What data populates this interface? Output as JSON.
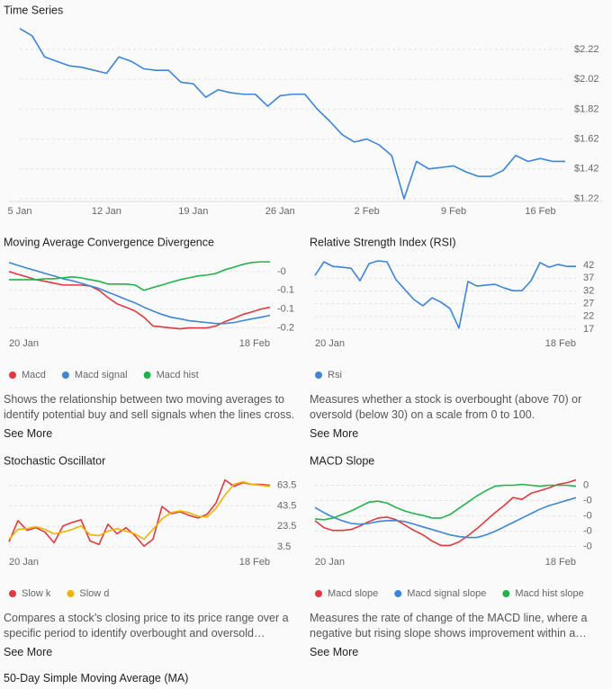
{
  "chart_data": [
    {
      "type": "line",
      "title": "Time Series",
      "grid": true,
      "color": "#3d85d6",
      "categories": [
        "5 Jan",
        null,
        null,
        null,
        null,
        null,
        null,
        "12 Jan",
        null,
        null,
        null,
        null,
        null,
        null,
        "19 Jan",
        null,
        null,
        null,
        null,
        null,
        null,
        "26 Jan",
        null,
        null,
        null,
        null,
        null,
        null,
        "2 Feb",
        null,
        null,
        null,
        null,
        null,
        null,
        "9 Feb",
        null,
        null,
        null,
        null,
        null,
        null,
        "16 Feb",
        null,
        null
      ],
      "values": [
        2.36,
        2.31,
        2.17,
        2.14,
        2.11,
        2.1,
        2.08,
        2.06,
        2.17,
        2.14,
        2.09,
        2.08,
        2.08,
        2.0,
        1.99,
        1.9,
        1.95,
        1.93,
        1.92,
        1.92,
        1.84,
        1.91,
        1.92,
        1.92,
        1.82,
        1.74,
        1.65,
        1.6,
        1.62,
        1.58,
        1.51,
        1.22,
        1.47,
        1.42,
        1.43,
        1.44,
        1.4,
        1.37,
        1.37,
        1.41,
        1.51,
        1.47,
        1.49,
        1.47,
        1.47
      ],
      "ylim": [
        1.22,
        2.37
      ],
      "yticks": [
        {
          "value": 1.22,
          "label": "$1.22"
        },
        {
          "value": 1.42,
          "label": "$1.42"
        },
        {
          "value": 1.62,
          "label": "$1.62"
        },
        {
          "value": 1.82,
          "label": "$1.82"
        },
        {
          "value": 2.02,
          "label": "$2.02"
        },
        {
          "value": 2.22,
          "label": "$2.22"
        }
      ]
    },
    {
      "type": "line",
      "title": "Moving Average Convergence Divergence",
      "grid": true,
      "categories": [
        "20 Jan",
        null,
        null,
        null,
        null,
        null,
        null,
        null,
        null,
        null,
        null,
        null,
        null,
        null,
        null,
        null,
        null,
        null,
        null,
        null,
        null,
        null,
        null,
        null,
        null,
        null,
        null,
        null,
        null,
        "18 Feb"
      ],
      "series": [
        {
          "name": "Macd",
          "color": "#e0393e",
          "values": [
            -0.02,
            -0.029,
            -0.037,
            -0.046,
            -0.051,
            -0.057,
            -0.063,
            -0.063,
            -0.063,
            -0.066,
            -0.08,
            -0.103,
            -0.123,
            -0.134,
            -0.146,
            -0.166,
            -0.194,
            -0.197,
            -0.2,
            -0.203,
            -0.2,
            -0.2,
            -0.2,
            -0.194,
            -0.18,
            -0.169,
            -0.157,
            -0.149,
            -0.14,
            -0.134
          ]
        },
        {
          "name": "Macd signal",
          "color": "#3d85d6",
          "values": [
            0.009,
            0.0,
            -0.009,
            -0.017,
            -0.026,
            -0.034,
            -0.043,
            -0.049,
            -0.057,
            -0.066,
            -0.074,
            -0.086,
            -0.097,
            -0.109,
            -0.12,
            -0.134,
            -0.146,
            -0.157,
            -0.166,
            -0.171,
            -0.177,
            -0.18,
            -0.183,
            -0.186,
            -0.186,
            -0.183,
            -0.177,
            -0.171,
            -0.166,
            -0.16
          ]
        },
        {
          "name": "Macd hist",
          "color": "#22b24c",
          "values": [
            -0.046,
            -0.046,
            -0.046,
            -0.046,
            -0.043,
            -0.043,
            -0.04,
            -0.037,
            -0.04,
            -0.046,
            -0.051,
            -0.06,
            -0.06,
            -0.06,
            -0.063,
            -0.08,
            -0.071,
            -0.063,
            -0.054,
            -0.046,
            -0.04,
            -0.034,
            -0.031,
            -0.026,
            -0.014,
            -0.006,
            0.003,
            0.009,
            0.011,
            0.011
          ]
        }
      ],
      "ylim": [
        -0.21,
        0.02
      ],
      "yticks": [
        {
          "value": -0.2,
          "label": "-0.2"
        },
        {
          "value": -0.14,
          "label": "-0.1"
        },
        {
          "value": -0.08,
          "label": "-0.1"
        },
        {
          "value": -0.02,
          "label": "-0"
        }
      ],
      "description": "Shows the relationship between two moving averages to identify potential buy and sell signals when the lines cross.",
      "link": "See More"
    },
    {
      "type": "line",
      "title": "Relative Strength Index (RSI)",
      "grid": true,
      "categories": [
        "20 Jan",
        null,
        null,
        null,
        null,
        null,
        null,
        null,
        null,
        null,
        null,
        null,
        null,
        null,
        null,
        null,
        null,
        null,
        null,
        null,
        null,
        null,
        null,
        null,
        null,
        null,
        null,
        null,
        null,
        "18 Feb"
      ],
      "series": [
        {
          "name": "Rsi",
          "color": "#3d85d6",
          "values": [
            38.1,
            43.4,
            41.6,
            41.3,
            40.9,
            36.0,
            42.7,
            43.8,
            43.4,
            36.4,
            32.5,
            28.6,
            26.2,
            29.3,
            27.6,
            25.1,
            17.4,
            35.7,
            33.9,
            34.3,
            34.6,
            33.2,
            32.1,
            32.1,
            36.0,
            43.1,
            41.3,
            42.4,
            41.6,
            41.6
          ]
        }
      ],
      "ylim": [
        16.3,
        44.5
      ],
      "yticks": [
        17,
        22,
        27,
        32,
        37,
        42
      ],
      "description": "Measures whether a stock is overbought (above 70) or oversold (below 30) on a scale from 0 to 100.",
      "link": "See More"
    },
    {
      "type": "line",
      "title": "Stochastic Oscillator",
      "grid": true,
      "categories": [
        "20 Jan",
        null,
        null,
        null,
        null,
        null,
        null,
        null,
        null,
        null,
        null,
        null,
        null,
        null,
        null,
        null,
        null,
        null,
        null,
        null,
        null,
        null,
        null,
        null,
        null,
        null,
        null,
        null,
        null,
        "18 Feb"
      ],
      "series": [
        {
          "name": "Slow k",
          "color": "#e0393e",
          "values": [
            8.6,
            29.2,
            19.7,
            22.3,
            18.0,
            7.7,
            24.0,
            27.4,
            30.0,
            9.4,
            6.0,
            25.7,
            16.3,
            22.3,
            14.6,
            4.3,
            11.1,
            42.9,
            36.0,
            37.7,
            34.3,
            31.7,
            35.2,
            46.3,
            68.7,
            62.6,
            66.1,
            64.4,
            64.4,
            63.5
          ]
        },
        {
          "name": "Slow d",
          "color": "#f0b400",
          "values": [
            11.1,
            20.6,
            21.4,
            23.2,
            20.6,
            16.3,
            18.0,
            20.6,
            24.0,
            15.4,
            14.6,
            18.9,
            21.4,
            18.9,
            16.3,
            11.1,
            20.6,
            30.9,
            36.9,
            38.6,
            36.9,
            33.5,
            32.6,
            41.2,
            54.1,
            64.4,
            66.9,
            64.4,
            63.5,
            62.6
          ]
        }
      ],
      "ylim": [
        1,
        71
      ],
      "yticks": [
        3.5,
        23.5,
        43.5,
        63.5
      ],
      "description": "Compares a stock’s closing price to its price range over a specific period to identify overbought and oversold…",
      "link": "See More"
    },
    {
      "type": "line",
      "title": "MACD Slope",
      "grid": true,
      "categories": [
        "20 Jan",
        null,
        null,
        null,
        null,
        null,
        null,
        null,
        null,
        null,
        null,
        null,
        null,
        null,
        null,
        null,
        null,
        null,
        null,
        null,
        null,
        null,
        null,
        null,
        null,
        null,
        null,
        null,
        null,
        "18 Feb"
      ],
      "series": [
        {
          "name": "Macd slope",
          "color": "#e0393e",
          "values": [
            -0.00231,
            -0.00277,
            -0.00295,
            -0.00295,
            -0.00289,
            -0.00266,
            -0.00237,
            -0.00214,
            -0.00208,
            -0.00225,
            -0.0026,
            -0.00295,
            -0.00324,
            -0.00364,
            -0.00393,
            -0.00393,
            -0.0037,
            -0.00329,
            -0.00283,
            -0.00231,
            -0.00179,
            -0.00133,
            -0.0008,
            -0.00092,
            -0.00052,
            -0.00035,
            -0.00017,
            6e-05,
            0.00017,
            0.00035
          ]
        },
        {
          "name": "Macd signal slope",
          "color": "#3d85d6",
          "values": [
            -0.00145,
            -0.00179,
            -0.00208,
            -0.00231,
            -0.00249,
            -0.00254,
            -0.00249,
            -0.00237,
            -0.00231,
            -0.00231,
            -0.00237,
            -0.00254,
            -0.00272,
            -0.00289,
            -0.00306,
            -0.00324,
            -0.00335,
            -0.00341,
            -0.00341,
            -0.00324,
            -0.00301,
            -0.00272,
            -0.00243,
            -0.00214,
            -0.00185,
            -0.00156,
            -0.00133,
            -0.00116,
            -0.00098,
            -0.00081
          ]
        },
        {
          "name": "Macd hist slope",
          "color": "#22b24c",
          "values": [
            -0.0022,
            -0.00225,
            -0.00214,
            -0.00191,
            -0.00168,
            -0.00139,
            -0.0011,
            -0.00104,
            -0.00116,
            -0.00145,
            -0.00168,
            -0.00185,
            -0.00197,
            -0.00214,
            -0.00214,
            -0.00191,
            -0.0015,
            -0.0011,
            -0.00069,
            -0.00035,
            -6e-05,
            0,
            0,
            6e-05,
            0,
            -6e-05,
            0,
            0,
            0,
            -6e-05
          ]
        }
      ],
      "ylim": [
        -0.0042,
        0.0005
      ],
      "yticks": [
        {
          "value": -0.004,
          "label": "-0"
        },
        {
          "value": -0.003,
          "label": "-0"
        },
        {
          "value": -0.002,
          "label": "-0"
        },
        {
          "value": -0.001,
          "label": "-0"
        },
        0
      ],
      "description": "Measures the rate of change of the MACD line, where a negative but rising slope shows improvement within a…",
      "link": "See More"
    }
  ],
  "footer_title": "50-Day Simple Moving Average (MA)"
}
